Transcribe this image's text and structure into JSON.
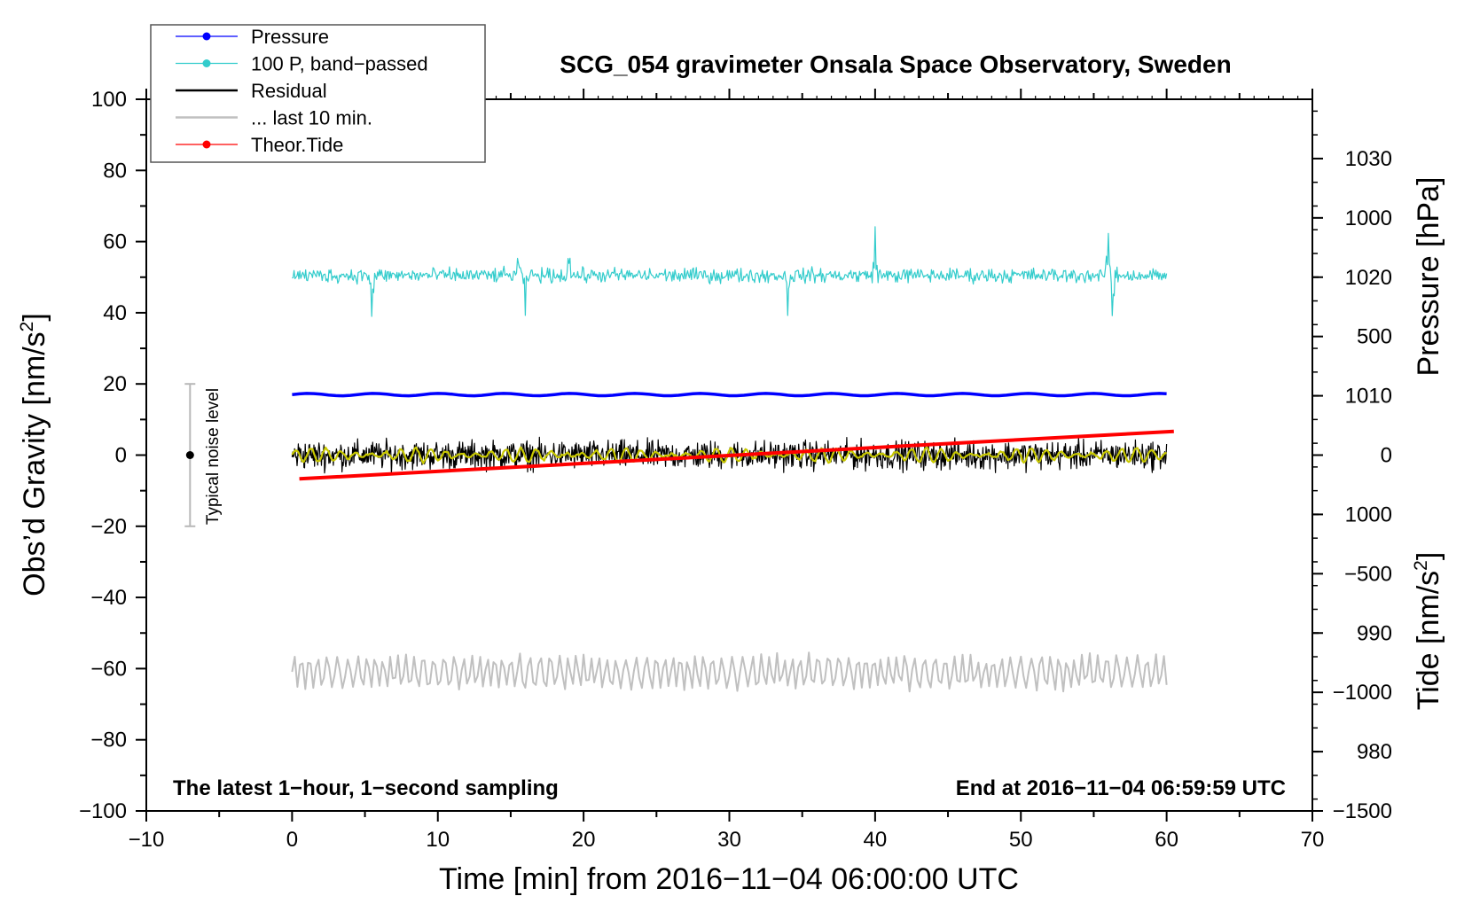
{
  "chart_data": {
    "type": "line",
    "title": "SCG_054 gravimeter Onsala Space Observatory, Sweden",
    "xlabel": "Time [min] from 2016−11−04 06:00:00 UTC",
    "ylabel_left": "Obs’d Gravity [nm/s",
    "ylabel_right_top": "Pressure [hPa]",
    "ylabel_right_bottom": "Tide [nm/s",
    "superscript": "2",
    "closing_bracket": "]",
    "xlim": [
      -10,
      70
    ],
    "ylim_left": [
      -100,
      100
    ],
    "ylim_pressure": [
      975,
      1035
    ],
    "ylim_tide": [
      -1500,
      1500
    ],
    "x_ticks": [
      -10,
      0,
      10,
      20,
      30,
      40,
      50,
      60,
      70
    ],
    "x_tick_labels": [
      "−10",
      "0",
      "10",
      "20",
      "30",
      "40",
      "50",
      "60",
      "70"
    ],
    "y_left_ticks": [
      -100,
      -80,
      -60,
      -40,
      -20,
      0,
      20,
      40,
      60,
      80,
      100
    ],
    "y_left_tick_labels": [
      "−100",
      "−80",
      "−60",
      "−40",
      "−20",
      "0",
      "20",
      "40",
      "60",
      "80",
      "100"
    ],
    "y_pressure_ticks": [
      980,
      990,
      1000,
      1010,
      1020,
      1030
    ],
    "y_pressure_tick_labels": [
      "980",
      "990",
      "1000",
      "1010",
      "1020",
      "1030"
    ],
    "y_tide_ticks": [
      -1500,
      -1000,
      -500,
      0,
      500,
      1000
    ],
    "y_tide_tick_labels": [
      "−1500",
      "−1000",
      "−500",
      "0",
      "500",
      "1000"
    ],
    "legend": [
      {
        "label": "Pressure",
        "color": "#0000ff",
        "marker": true
      },
      {
        "label": "100 P, band−passed",
        "color": "#33cccc",
        "marker": true
      },
      {
        "label": "Residual",
        "color": "#000000",
        "marker": false
      },
      {
        "label": "... last 10 min.",
        "color": "#c0c0c0",
        "marker": false
      },
      {
        "label": "Theor.Tide",
        "color": "#ff0000",
        "marker": true
      }
    ],
    "series": [
      {
        "name": "Pressure",
        "axis": "pressure",
        "color": "#0000ff",
        "x_range": [
          0,
          60
        ],
        "level": 1010.1,
        "amplitude": 0.1
      },
      {
        "name": "100 P, band−passed",
        "axis": "left",
        "color": "#33cccc",
        "x_range": [
          0,
          60
        ],
        "center": 50.5,
        "amplitude": 2.5,
        "spikes": [
          [
            5.5,
            -13
          ],
          [
            15.5,
            6
          ],
          [
            16,
            -10
          ],
          [
            19,
            7
          ],
          [
            34,
            -10
          ],
          [
            40,
            12
          ],
          [
            56,
            13
          ],
          [
            56.3,
            -13
          ]
        ]
      },
      {
        "name": "Residual",
        "axis": "left",
        "color": "#000000",
        "x_range": [
          0,
          60
        ],
        "center": 0,
        "amplitude": 4.5,
        "max_abs": 9
      },
      {
        "name": "Residual smoothed",
        "axis": "left",
        "color": "#c8c800",
        "x_range": [
          0,
          60
        ],
        "center": 0,
        "amplitude": 2
      },
      {
        "name": "... last 10 min.",
        "axis": "left",
        "color": "#c0c0c0",
        "x_range": [
          0,
          60
        ],
        "center": -61,
        "amplitude": 4.5,
        "min": -70,
        "max": -52
      },
      {
        "name": "Theor.Tide",
        "axis": "tide",
        "color": "#ff0000",
        "x": [
          0.5,
          60.5
        ],
        "y": [
          -100,
          100
        ]
      }
    ],
    "noise_bar": {
      "x": -7,
      "center": 0,
      "low": -20,
      "high": 20,
      "label": "Typical noise level"
    },
    "annotations": {
      "bottom_left": "The latest 1−hour, 1−second sampling",
      "bottom_right": "End at 2016−11−04 06:59:59 UTC"
    }
  }
}
